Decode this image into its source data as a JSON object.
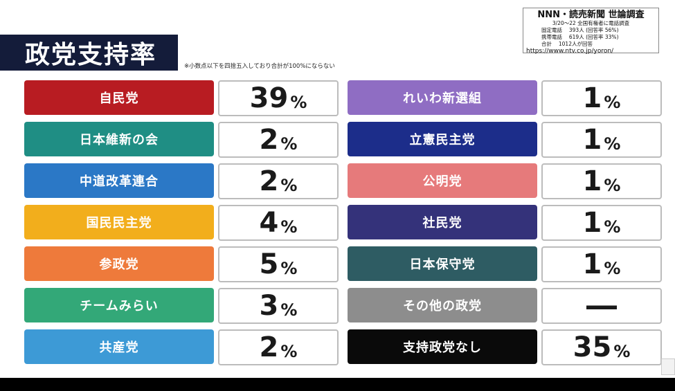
{
  "header": {
    "title": "政党支持率",
    "note": "※小数点以下を四捨五入しており合計が100%にならない"
  },
  "source": {
    "title": "NNN・読売新聞 世論調査",
    "line1": "3/20〜22 全国有権者に電話調査",
    "line2": "固定電話　 393人 (回答率 56%)",
    "line3": "携帯電話　 619人 (回答率 33%)",
    "line4": "合計　 1012人が回答",
    "url": "https://www.ntv.co.jp/yoron/"
  },
  "chart_data": {
    "type": "table",
    "unit": "%",
    "missing_symbol": "―",
    "rows": [
      {
        "party": "自民党",
        "value": 39,
        "color": "#b81c22"
      },
      {
        "party": "日本維新の会",
        "value": 2,
        "color": "#1f8e84"
      },
      {
        "party": "中道改革連合",
        "value": 2,
        "color": "#2b78c6"
      },
      {
        "party": "国民民主党",
        "value": 4,
        "color": "#f2ae1c"
      },
      {
        "party": "参政党",
        "value": 5,
        "color": "#ee7a3b"
      },
      {
        "party": "チームみらい",
        "value": 3,
        "color": "#33a878"
      },
      {
        "party": "共産党",
        "value": 2,
        "color": "#3d9ad6"
      },
      {
        "party": "れいわ新選組",
        "value": 1,
        "color": "#8f6dc3"
      },
      {
        "party": "立憲民主党",
        "value": 1,
        "color": "#1c2d8a"
      },
      {
        "party": "公明党",
        "value": 1,
        "color": "#e67a7b"
      },
      {
        "party": "社民党",
        "value": 1,
        "color": "#34327a"
      },
      {
        "party": "日本保守党",
        "value": 1,
        "color": "#2e5c63"
      },
      {
        "party": "その他の政党",
        "value": null,
        "color": "#8d8d8d"
      },
      {
        "party": "支持政党なし",
        "value": 35,
        "color": "#0a0a0a"
      }
    ]
  }
}
